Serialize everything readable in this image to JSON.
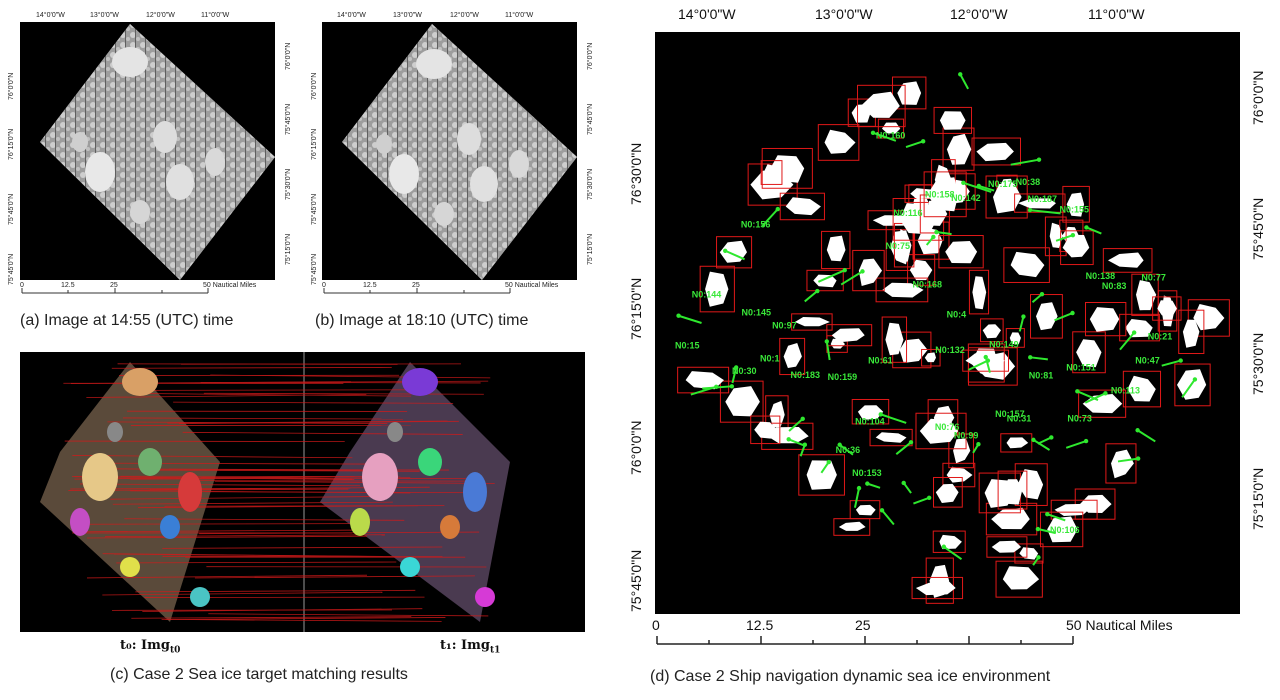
{
  "panel_a": {
    "caption": "(a) Image at 14:55 (UTC) time",
    "lon_ticks": [
      "14°0'0\"W",
      "13°0'0\"W",
      "12°0'0\"W",
      "11°0'0\"W"
    ],
    "lat_ticks_left": [
      "76°0'0\"N",
      "75°45'0\"N",
      "76°15'0\"N",
      "76°30'0\"N",
      "75°45'0\"N"
    ],
    "lat_ticks_right": [
      "76°0'0\"N",
      "75°45'0\"N",
      "75°30'0\"N",
      "75°15'0\"N"
    ],
    "scale": [
      "0",
      "12.5",
      "25",
      "50 Nautical Miles"
    ]
  },
  "panel_b": {
    "caption": "(b) Image at 18:10 (UTC) time",
    "lon_ticks": [
      "14°0'0\"W",
      "13°0'0\"W",
      "12°0'0\"W",
      "11°0'0\"W"
    ],
    "lat_ticks_left": [
      "76°0'0\"N",
      "75°45'0\"N",
      "76°15'0\"N",
      "76°30'0\"N",
      "75°45'0\"N"
    ],
    "lat_ticks_right": [
      "76°0'0\"N",
      "75°45'0\"N",
      "75°30'0\"N",
      "75°15'0\"N"
    ],
    "scale": [
      "0",
      "12.5",
      "25",
      "50 Nautical Miles"
    ]
  },
  "panel_c": {
    "caption": "(c) Case 2 Sea ice target matching results",
    "label_t0": "t₀: Img",
    "label_t0_sub": "t0",
    "label_t1": "t₁: Img",
    "label_t1_sub": "t1"
  },
  "panel_d": {
    "caption": "(d) Case 2 Ship navigation dynamic sea ice environment",
    "lon_ticks": [
      "14°0'0\"W",
      "13°0'0\"W",
      "12°0'0\"W",
      "11°0'0\"W"
    ],
    "lat_ticks_left": [
      "76°30'0\"N",
      "76°15'0\"N",
      "76°0'0\"N",
      "75°45'0\"N"
    ],
    "lat_ticks_right": [
      "76°0'0\"N",
      "75°45'0\"N",
      "75°30'0\"N",
      "75°15'0\"N"
    ],
    "scale": [
      "0",
      "12.5",
      "25",
      "50 Nautical Miles"
    ],
    "floe_labels": [
      "N0:1",
      "N0:157",
      "N0:156",
      "N0:159",
      "N0:155",
      "N0:158",
      "N0:187",
      "N0:153",
      "N0:160",
      "N0:149",
      "N0:151",
      "N0:4",
      "N0:144",
      "N0:142",
      "N0:138",
      "N0:21",
      "N0:145",
      "N0:183",
      "N0:132",
      "N0:168",
      "N0:31",
      "N0:30",
      "N0:36",
      "N0:38",
      "N0:116",
      "N0:113",
      "N0:47",
      "N0:106",
      "N0:104",
      "N0:99",
      "N0:61",
      "N0:97",
      "N0:175",
      "N0:76",
      "N0:81",
      "N0:77",
      "N0:73",
      "N0:83",
      "N0:75",
      "N0:15"
    ]
  }
}
